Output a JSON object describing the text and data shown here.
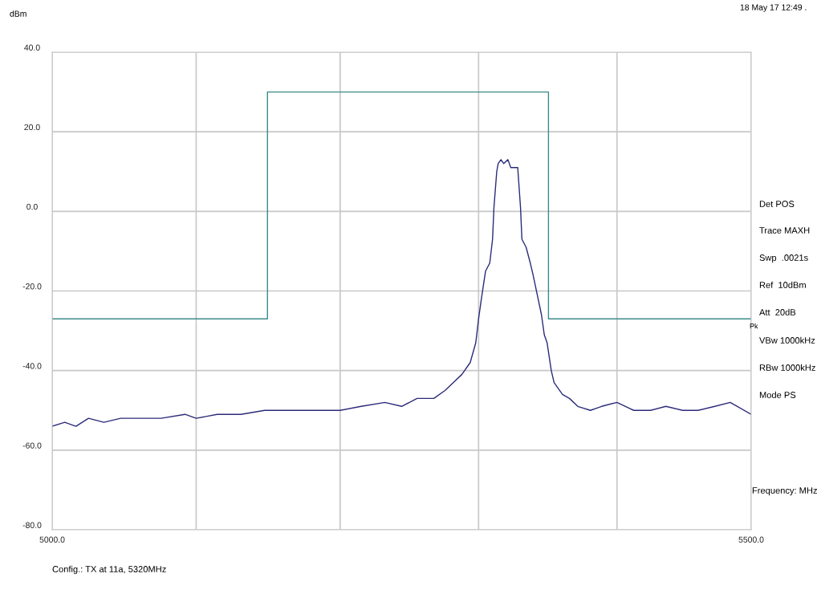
{
  "chart_data": {
    "type": "line",
    "xlabel": "Frequency: MHz",
    "ylabel": "dBm",
    "xlim": [
      5000,
      5500
    ],
    "ylim": [
      -80,
      40
    ],
    "xticks": [
      {
        "value": 5000,
        "label": "5000.0"
      },
      {
        "value": 5103,
        "label": null
      },
      {
        "value": 5206,
        "label": null
      },
      {
        "value": 5305,
        "label": null
      },
      {
        "value": 5404,
        "label": null
      },
      {
        "value": 5500,
        "label": "5500.0"
      }
    ],
    "yticks": [
      {
        "value": -80,
        "label": "-80.0"
      },
      {
        "value": -60,
        "label": "-60.0"
      },
      {
        "value": -40,
        "label": "-40.0"
      },
      {
        "value": -20,
        "label": "-20.0"
      },
      {
        "value": 0,
        "label": "0.0"
      },
      {
        "value": 20,
        "label": "20.0"
      },
      {
        "value": 40,
        "label": "40.0"
      }
    ],
    "grid": true,
    "legend": false,
    "marker": "none",
    "line_style": "solid",
    "series": [
      {
        "color": "#2b2b7a",
        "x": [
          5000,
          5009,
          5017,
          5026,
          5037,
          5049,
          5060,
          5078,
          5095,
          5103,
          5118,
          5135,
          5152,
          5169,
          5187,
          5206,
          5221,
          5238,
          5250,
          5261,
          5273,
          5281,
          5287,
          5293,
          5299,
          5303,
          5305,
          5307,
          5310,
          5313,
          5315,
          5316,
          5318,
          5319,
          5321,
          5323,
          5326,
          5328,
          5330,
          5333,
          5335,
          5336,
          5339,
          5342,
          5344,
          5347,
          5350,
          5352,
          5354,
          5357,
          5359,
          5365,
          5370,
          5376,
          5385,
          5393,
          5404,
          5416,
          5428,
          5439,
          5451,
          5462,
          5474,
          5485,
          5500
        ],
        "values": [
          -54,
          -53,
          -54,
          -52,
          -53,
          -52,
          -52,
          -52,
          -51,
          -52,
          -51,
          -51,
          -50,
          -50,
          -50,
          -50,
          -49,
          -48,
          -49,
          -47,
          -47,
          -45,
          -43,
          -41,
          -38,
          -33,
          -27,
          -22,
          -15,
          -13,
          -7,
          1,
          10,
          12,
          13,
          12,
          13,
          11,
          11,
          11,
          1,
          -7,
          -9,
          -13,
          -16,
          -21,
          -26,
          -31,
          -33,
          -40,
          -43,
          -46,
          -47,
          -49,
          -50,
          -49,
          -48,
          -50,
          -50,
          -49,
          -50,
          -50,
          -49,
          -48,
          -51
        ]
      },
      {
        "color": "#3d8a8a",
        "x": [
          5000,
          5154,
          5154,
          5355,
          5355,
          5500
        ],
        "values": [
          -27,
          -27,
          30,
          30,
          -27,
          -27
        ]
      }
    ],
    "annotations": [
      "18 May 17 12:49 .",
      "Det POS",
      "Trace MAXH",
      "Swp  .0021s",
      "Ref  10dBm",
      "Att  20dB",
      "VBw 1000kHz",
      "RBw 1000kHz",
      "Mode PS",
      "Pk",
      "Config.: TX at 11a, 5320MHz"
    ]
  }
}
